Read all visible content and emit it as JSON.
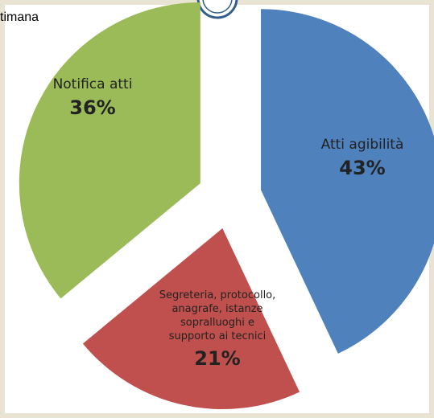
{
  "chart_data": {
    "type": "pie",
    "title": "timana",
    "categories": [
      "Atti agibilità",
      "Segreteria, protocollo, anagrafe, istanze sopralluoghi e supporto ai tecnici",
      "Notifica atti"
    ],
    "values": [
      43,
      21,
      36
    ],
    "value_labels": [
      "43%",
      "21%",
      "36%"
    ],
    "colors": [
      "#4f81bd",
      "#c0504d",
      "#9bbb59"
    ]
  }
}
